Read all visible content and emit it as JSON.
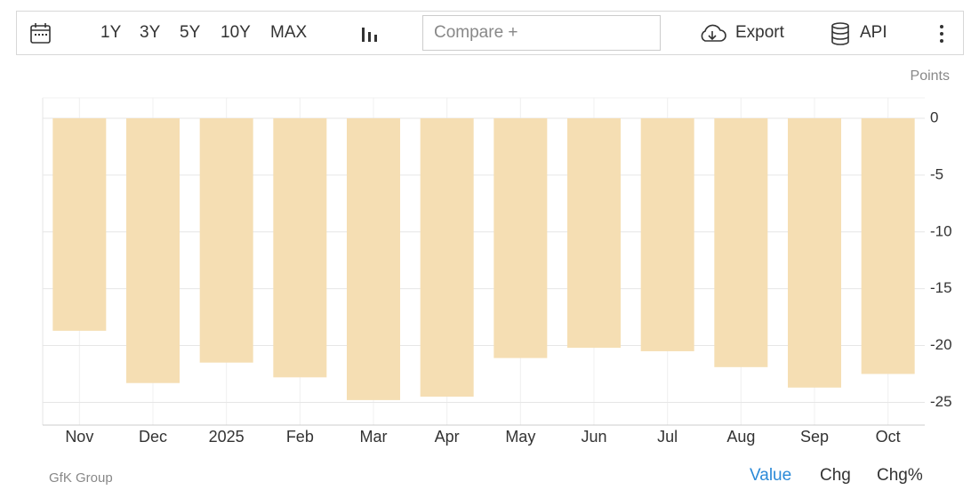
{
  "toolbar": {
    "ranges": [
      "1Y",
      "3Y",
      "5Y",
      "10Y",
      "MAX"
    ],
    "compare": "Compare +",
    "export": "Export",
    "api": "API"
  },
  "chart_data": {
    "type": "bar",
    "unit_label": "Points",
    "categories": [
      "Nov",
      "Dec",
      "2025",
      "Feb",
      "Mar",
      "Apr",
      "May",
      "Jun",
      "Jul",
      "Aug",
      "Sep",
      "Oct"
    ],
    "values": [
      -18.7,
      -23.3,
      -21.5,
      -22.8,
      -24.8,
      -24.5,
      -21.1,
      -20.2,
      -20.5,
      -21.9,
      -23.7,
      -22.5
    ],
    "color": "#f5deb3",
    "ylim": [
      -27,
      1.8
    ],
    "yticks": [
      0,
      -5,
      -10,
      -15,
      -20,
      -25
    ],
    "grid": true,
    "source": "GfK Group",
    "view_options": [
      "Value",
      "Chg",
      "Chg%"
    ]
  }
}
